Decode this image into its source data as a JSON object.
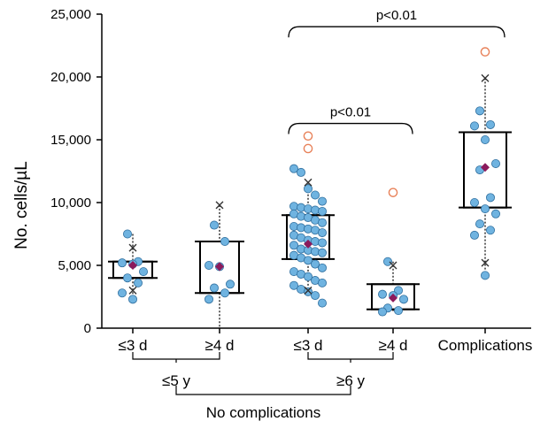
{
  "chart_data": {
    "type": "box+scatter",
    "ylabel": "No. cells/µL",
    "ylim": [
      0,
      25000
    ],
    "yticks": [
      0,
      5000,
      10000,
      15000,
      20000,
      25000
    ],
    "ytick_labels": [
      "0",
      "5,000",
      "10,000",
      "15,000",
      "20,000",
      "25,000"
    ],
    "groups": [
      {
        "label": "<3 d",
        "label_underlined_char": "<",
        "label_rest": "3 d",
        "q1": 4000,
        "q3": 5300,
        "mean": 5000,
        "whisker_low": 2300,
        "whisker_high": 7500,
        "xmarks": [
          6400,
          3000
        ],
        "outliers": [],
        "points": [
          7500,
          5300,
          5200,
          5100,
          4500,
          4000,
          3600,
          2800,
          2300
        ]
      },
      {
        "label": ">4 d",
        "label_underlined_char": ">",
        "label_rest": "4 d",
        "q1": 2800,
        "q3": 6900,
        "mean": 4900,
        "whisker_low": 0,
        "whisker_high": 9800,
        "xmarks": [
          9800
        ],
        "outliers": [],
        "points": [
          8200,
          6900,
          5000,
          4900,
          3500,
          3200,
          2800,
          2300
        ]
      },
      {
        "label": "<3 d",
        "label_underlined_char": "<",
        "label_rest": "3 d",
        "q1": 5500,
        "q3": 9000,
        "mean": 6700,
        "whisker_low": 2700,
        "whisker_high": 11500,
        "xmarks": [
          11600,
          3000
        ],
        "outliers": [
          15300,
          14300
        ],
        "points": [
          12700,
          12400,
          11100,
          10600,
          10100,
          9700,
          9600,
          9500,
          9400,
          9300,
          9100,
          8900,
          8800,
          8600,
          8400,
          8100,
          8000,
          7900,
          7800,
          7600,
          7400,
          7200,
          7000,
          6900,
          6800,
          6600,
          6300,
          6200,
          6100,
          6000,
          5800,
          5600,
          5400,
          5100,
          4800,
          4500,
          4300,
          4100,
          3800,
          3600,
          3400,
          3100,
          2900,
          2600,
          2000
        ]
      },
      {
        "label": ">4 d",
        "label_underlined_char": ">",
        "label_rest": "4 d",
        "q1": 1500,
        "q3": 3500,
        "mean": 2400,
        "whisker_low": 1300,
        "whisker_high": 5300,
        "xmarks": [
          5000
        ],
        "outliers": [
          10800
        ],
        "points": [
          5300,
          3000,
          2700,
          2600,
          2300,
          1600,
          1400,
          1300
        ]
      },
      {
        "label": "Complications",
        "label_underlined_char": "",
        "label_rest": "Complications",
        "q1": 9600,
        "q3": 15600,
        "mean": 12800,
        "whisker_low": 4200,
        "whisker_high": 19900,
        "xmarks": [
          19900,
          5200
        ],
        "outliers": [
          22000
        ],
        "points": [
          17300,
          16200,
          16100,
          15000,
          13100,
          12600,
          10400,
          10000,
          9500,
          9100,
          8300,
          7800,
          7400,
          4200
        ]
      }
    ],
    "annotations": [
      {
        "text": "p<0.01",
        "from_group": 2,
        "to_group": 4,
        "y": 24000
      },
      {
        "text": "p<0.01",
        "from_group": 2,
        "to_group": 3,
        "y": 16300
      }
    ],
    "group_labels": [
      {
        "label": "<5 y",
        "underlined_char": "<",
        "rest": "5 y",
        "from_group": 0,
        "to_group": 1
      },
      {
        "label": ">6 y",
        "underlined_char": ">",
        "rest": "6 y",
        "from_group": 2,
        "to_group": 3
      },
      {
        "label": "No complications",
        "from_group": 0,
        "to_group": 3
      }
    ],
    "colors": {
      "point_fill": "#6fb3e0",
      "point_stroke": "#2f6f9f",
      "mean": "#8b1a5c",
      "outlier": "#e8825a",
      "xmark": "#333333",
      "box": "#000000"
    }
  }
}
